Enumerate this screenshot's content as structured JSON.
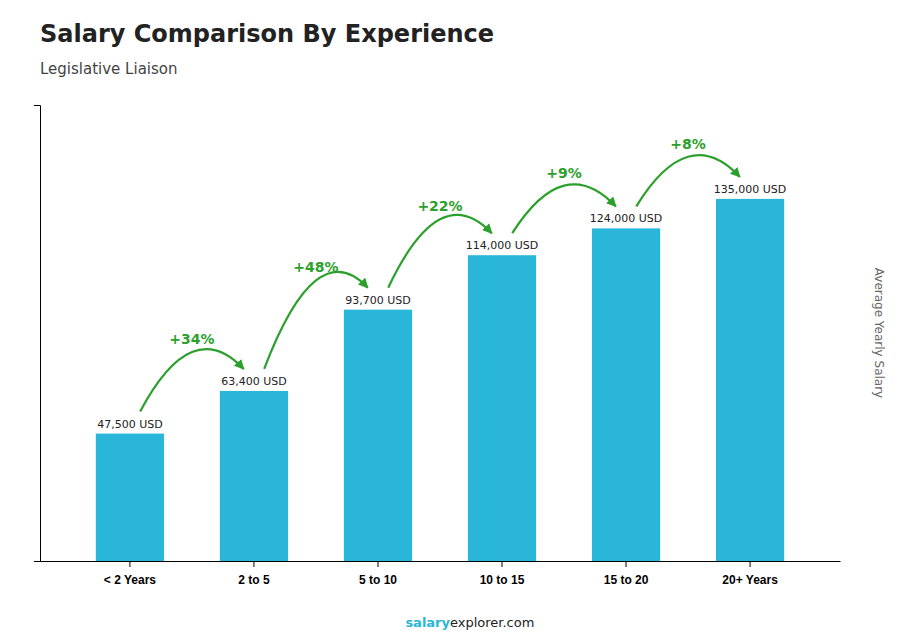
{
  "chart_data": {
    "type": "bar",
    "title": "Salary Comparison By Experience",
    "subtitle": "Legislative Liaison",
    "ylabel": "Average Yearly Salary",
    "categories": [
      "< 2 Years",
      "2 to 5",
      "5 to 10",
      "10 to 15",
      "15 to 20",
      "20+ Years"
    ],
    "values": [
      47500,
      63400,
      93700,
      114000,
      124000,
      135000
    ],
    "value_labels": [
      "47,500 USD",
      "63,400 USD",
      "93,700 USD",
      "114,000 USD",
      "124,000 USD",
      "135,000 USD"
    ],
    "data_labels": true,
    "color": "#29b6d8",
    "ylim": [
      0,
      170000
    ],
    "tick_labels": "x",
    "annotations": [
      "+34%",
      "+48%",
      "+22%",
      "+9%",
      "+8%"
    ],
    "footer": [
      "salary",
      "explorer.com"
    ]
  }
}
